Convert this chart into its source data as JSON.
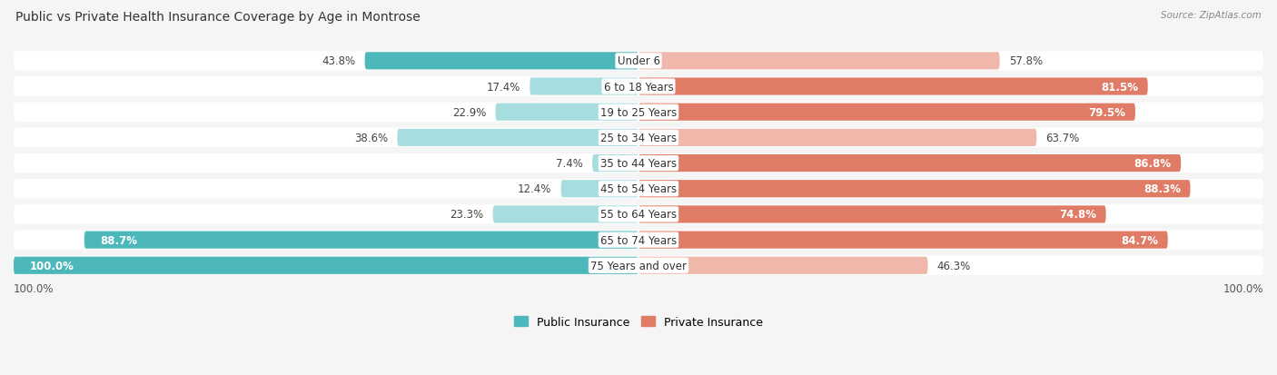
{
  "title": "Public vs Private Health Insurance Coverage by Age in Montrose",
  "source": "Source: ZipAtlas.com",
  "categories": [
    "Under 6",
    "6 to 18 Years",
    "19 to 25 Years",
    "25 to 34 Years",
    "35 to 44 Years",
    "45 to 54 Years",
    "55 to 64 Years",
    "65 to 74 Years",
    "75 Years and over"
  ],
  "public_values": [
    43.8,
    17.4,
    22.9,
    38.6,
    7.4,
    12.4,
    23.3,
    88.7,
    100.0
  ],
  "private_values": [
    57.8,
    81.5,
    79.5,
    63.7,
    86.8,
    88.3,
    74.8,
    84.7,
    46.3
  ],
  "public_color_dark": "#4db8bb",
  "public_color_light": "#a8dde0",
  "private_color_dark": "#e07b65",
  "private_color_light": "#f0b8aa",
  "row_bg_color": "#e8e8e8",
  "bar_bg_color": "#f0f0f0",
  "fig_bg_color": "#f5f5f5",
  "title_fontsize": 10,
  "label_fontsize": 8.5,
  "cat_fontsize": 8.5,
  "legend_fontsize": 9,
  "source_fontsize": 7.5,
  "max_value": 100.0
}
